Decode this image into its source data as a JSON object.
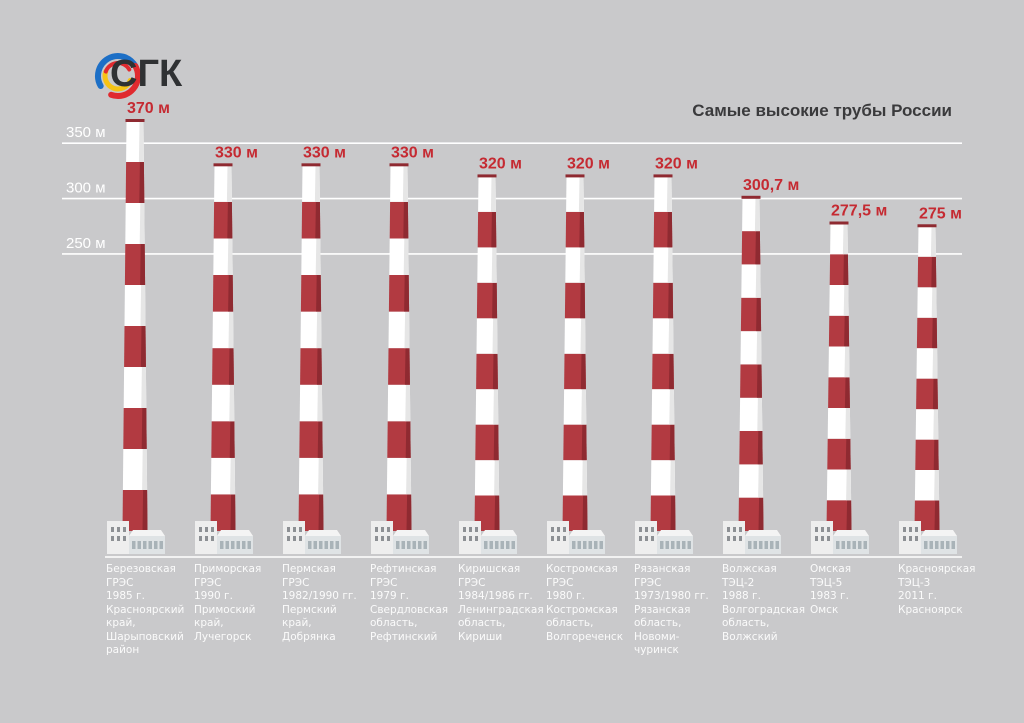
{
  "brand": {
    "name": "СГК",
    "colors": {
      "blue": "#1d6fc6",
      "red": "#e02a2f",
      "yellow": "#f6c315",
      "ring_inner": "#c9c9cb"
    }
  },
  "chart_data": {
    "type": "bar",
    "title": "Самые высокие трубы России",
    "xlabel": "",
    "ylabel": "",
    "unit": "м",
    "ylim": [
      0,
      370
    ],
    "yticks": [
      250,
      300,
      350
    ],
    "ytick_labels": [
      "250 м",
      "300 м",
      "350 м"
    ],
    "value_labels": [
      "370 м",
      "330 м",
      "330 м",
      "330 м",
      "320 м",
      "320 м",
      "320 м",
      "300,7 м",
      "277,5 м",
      "275 м"
    ],
    "values": [
      370,
      330,
      330,
      330,
      320,
      320,
      320,
      300.7,
      277.5,
      275
    ],
    "categories": [
      [
        "Березовская",
        "ГРЭС",
        "1985 г.",
        "Красноярский",
        "край,",
        "Шарыповский",
        "район"
      ],
      [
        "Приморская",
        "ГРЭС",
        "1990 г.",
        "Примоский",
        "край,",
        "Лучегорск"
      ],
      [
        "Пермская",
        "ГРЭС",
        "1982/1990 гг.",
        "Пермский",
        "край,",
        "Добрянка"
      ],
      [
        "Рефтинская",
        "ГРЭС",
        "1979 г.",
        "Свердловская",
        "область,",
        "Рефтинский"
      ],
      [
        "Киришская",
        "ГРЭС",
        "1984/1986 гг.",
        "Ленинградская",
        "область,",
        "Кириши"
      ],
      [
        "Костромская",
        "ГРЭС",
        "1980 г.",
        "Костромская",
        "область,",
        "Волгореченск"
      ],
      [
        "Рязанская",
        "ГРЭС",
        "1973/1980 гг.",
        "Рязанская",
        "область,",
        "Новоми-",
        "чуринск"
      ],
      [
        "Волжская",
        "ТЭЦ-2",
        "1988 г.",
        "Волгоградская",
        "область,",
        "Волжский"
      ],
      [
        "Омская",
        "ТЭЦ-5",
        "1983 г.",
        "Омск"
      ],
      [
        "Красноярская",
        "ТЭЦ-3",
        "2011 г.",
        "Красноярск"
      ]
    ],
    "colors": {
      "red": "#b23a41",
      "red_dark": "#8f2a31",
      "white": "#ffffff",
      "white_shade": "#e6e6e6",
      "label": "#c52a32",
      "grid": "#ffffff"
    }
  }
}
